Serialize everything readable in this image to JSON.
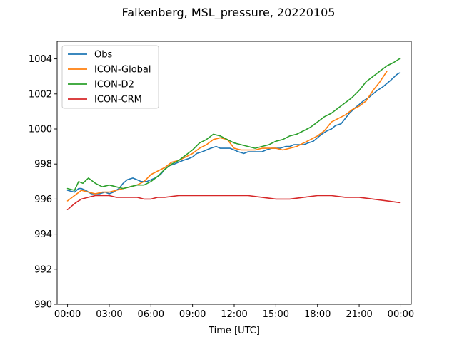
{
  "chart_data": {
    "type": "line",
    "title": "Falkenberg, MSL_pressure, 20220105",
    "xlabel": "Time [UTC]",
    "ylabel": "",
    "xlim": [
      -0.75,
      24.75
    ],
    "ylim": [
      990,
      1005
    ],
    "x_ticks": [
      0,
      3,
      6,
      9,
      12,
      15,
      18,
      21,
      24
    ],
    "x_tick_labels": [
      "00:00",
      "03:00",
      "06:00",
      "09:00",
      "12:00",
      "15:00",
      "18:00",
      "21:00",
      "00:00"
    ],
    "y_ticks": [
      990,
      992,
      994,
      996,
      998,
      1000,
      1002,
      1004
    ],
    "y_tick_labels": [
      "990",
      "992",
      "994",
      "996",
      "998",
      "1000",
      "1002",
      "1004"
    ],
    "grid": false,
    "legend_position": "top-left",
    "series": [
      {
        "name": "Obs",
        "color": "#1f77b4",
        "x": [
          0,
          0.5,
          0.8,
          1.0,
          1.3,
          1.7,
          2.0,
          2.3,
          2.7,
          3.0,
          3.3,
          3.7,
          4.0,
          4.3,
          4.7,
          5.0,
          5.3,
          5.7,
          6.0,
          6.3,
          6.7,
          7.0,
          7.3,
          7.7,
          8.0,
          8.3,
          8.7,
          9.0,
          9.3,
          9.7,
          10.0,
          10.3,
          10.7,
          11.0,
          11.3,
          11.7,
          12.0,
          12.3,
          12.7,
          13.0,
          13.3,
          13.7,
          14.0,
          14.3,
          14.7,
          15.0,
          15.3,
          15.7,
          16.0,
          16.3,
          16.7,
          17.0,
          17.3,
          17.7,
          18.0,
          18.3,
          18.7,
          19.0,
          19.3,
          19.7,
          20.0,
          20.3,
          20.7,
          21.0,
          21.3,
          21.7,
          22.0,
          22.3,
          22.7,
          23.0,
          23.3,
          23.7,
          23.9
        ],
        "y": [
          996.5,
          996.4,
          996.6,
          996.6,
          996.5,
          996.3,
          996.3,
          996.3,
          996.4,
          996.3,
          996.4,
          996.6,
          996.9,
          997.1,
          997.2,
          997.1,
          997.0,
          997.0,
          997.1,
          997.2,
          997.4,
          997.7,
          997.9,
          998.0,
          998.1,
          998.2,
          998.3,
          998.4,
          998.6,
          998.7,
          998.8,
          998.9,
          999.0,
          998.9,
          998.9,
          998.9,
          998.8,
          998.7,
          998.6,
          998.7,
          998.7,
          998.7,
          998.7,
          998.8,
          998.9,
          998.9,
          998.9,
          999.0,
          999.0,
          999.1,
          999.1,
          999.1,
          999.2,
          999.3,
          999.5,
          999.7,
          999.9,
          1000.0,
          1000.2,
          1000.3,
          1000.6,
          1000.9,
          1001.2,
          1001.4,
          1001.6,
          1001.8,
          1002.0,
          1002.2,
          1002.4,
          1002.6,
          1002.8,
          1003.1,
          1003.2
        ]
      },
      {
        "name": "ICON-Global",
        "color": "#ff7f0e",
        "x": [
          0,
          0.5,
          1.0,
          1.5,
          2.0,
          2.5,
          3.0,
          3.5,
          4.0,
          4.5,
          5.0,
          5.5,
          6.0,
          6.5,
          7.0,
          7.5,
          8.0,
          8.5,
          9.0,
          9.5,
          10.0,
          10.5,
          11.0,
          11.5,
          12.0,
          12.5,
          13.0,
          13.5,
          14.0,
          14.5,
          15.0,
          15.5,
          16.0,
          16.5,
          17.0,
          17.5,
          18.0,
          18.5,
          19.0,
          19.5,
          20.0,
          20.5,
          21.0,
          21.5,
          22.0,
          22.5,
          23.0
        ],
        "y": [
          995.9,
          996.2,
          996.5,
          996.4,
          996.3,
          996.4,
          996.4,
          996.5,
          996.6,
          996.7,
          996.8,
          997.0,
          997.4,
          997.6,
          997.8,
          998.1,
          998.2,
          998.4,
          998.6,
          998.9,
          999.1,
          999.4,
          999.5,
          999.4,
          998.9,
          998.8,
          998.8,
          998.8,
          998.9,
          998.9,
          998.9,
          998.8,
          998.9,
          999.0,
          999.2,
          999.4,
          999.6,
          999.9,
          1000.4,
          1000.6,
          1000.8,
          1001.1,
          1001.3,
          1001.6,
          1002.2,
          1002.7,
          1003.3
        ]
      },
      {
        "name": "ICON-D2",
        "color": "#2ca02c",
        "x": [
          0,
          0.5,
          0.8,
          1.1,
          1.5,
          2.0,
          2.5,
          3.0,
          3.5,
          4.0,
          4.5,
          5.0,
          5.5,
          6.0,
          6.5,
          7.0,
          7.5,
          8.0,
          8.5,
          9.0,
          9.5,
          10.0,
          10.5,
          11.0,
          11.5,
          12.0,
          12.5,
          13.0,
          13.5,
          14.0,
          14.5,
          15.0,
          15.5,
          16.0,
          16.5,
          17.0,
          17.5,
          18.0,
          18.5,
          19.0,
          19.5,
          20.0,
          20.5,
          21.0,
          21.5,
          22.0,
          22.5,
          23.0,
          23.5,
          23.9
        ],
        "y": [
          996.6,
          996.5,
          997.0,
          996.9,
          997.2,
          996.9,
          996.7,
          996.8,
          996.7,
          996.6,
          996.7,
          996.8,
          996.8,
          997.0,
          997.3,
          997.7,
          998.0,
          998.2,
          998.5,
          998.8,
          999.2,
          999.4,
          999.7,
          999.6,
          999.4,
          999.2,
          999.1,
          999.0,
          998.9,
          999.0,
          999.1,
          999.3,
          999.4,
          999.6,
          999.7,
          999.9,
          1000.1,
          1000.4,
          1000.7,
          1000.9,
          1001.2,
          1001.5,
          1001.8,
          1002.2,
          1002.7,
          1003.0,
          1003.3,
          1003.6,
          1003.8,
          1004.0
        ]
      },
      {
        "name": "ICON-CRM",
        "color": "#d62728",
        "x": [
          0,
          0.3,
          0.6,
          1.0,
          1.5,
          2.0,
          2.5,
          3.0,
          3.5,
          4.0,
          4.5,
          5.0,
          5.5,
          6.0,
          6.5,
          7.0,
          8.0,
          9.0,
          10.0,
          11.0,
          12.0,
          13.0,
          14.0,
          15.0,
          16.0,
          17.0,
          18.0,
          19.0,
          20.0,
          21.0,
          22.0,
          23.0,
          23.9
        ],
        "y": [
          995.4,
          995.6,
          995.8,
          996.0,
          996.1,
          996.2,
          996.2,
          996.2,
          996.1,
          996.1,
          996.1,
          996.1,
          996.0,
          996.0,
          996.1,
          996.1,
          996.2,
          996.2,
          996.2,
          996.2,
          996.2,
          996.2,
          996.1,
          996.0,
          996.0,
          996.1,
          996.2,
          996.2,
          996.1,
          996.1,
          996.0,
          995.9,
          995.8
        ]
      }
    ]
  }
}
